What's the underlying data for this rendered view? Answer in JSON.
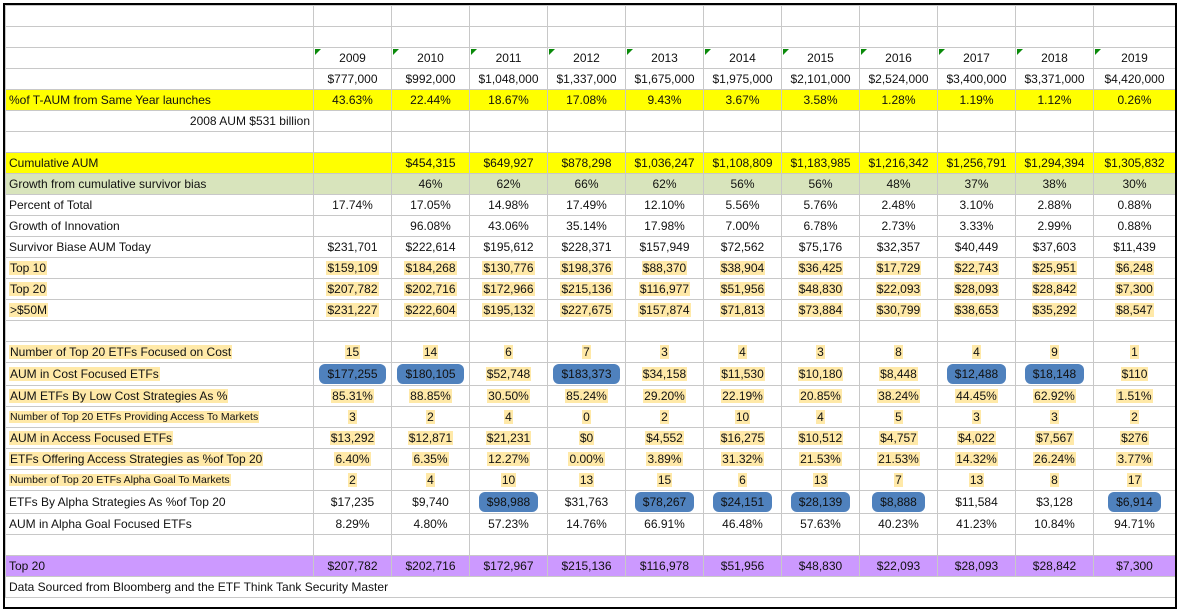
{
  "years": [
    "2009",
    "2010",
    "2011",
    "2012",
    "2013",
    "2014",
    "2015",
    "2016",
    "2017",
    "2018",
    "2019"
  ],
  "totals": [
    "$777,000",
    "$992,000",
    "$1,048,000",
    "$1,337,000",
    "$1,675,000",
    "$1,975,000",
    "$2,101,000",
    "$2,524,000",
    "$3,400,000",
    "$3,371,000",
    "$4,420,000"
  ],
  "rows": {
    "pct_taum": {
      "label": "%of T-AUM  from Same Year launches",
      "values": [
        "43.63%",
        "22.44%",
        "18.67%",
        "17.08%",
        "9.43%",
        "3.67%",
        "3.58%",
        "1.28%",
        "1.19%",
        "1.12%",
        "0.26%"
      ]
    },
    "aum_2008": {
      "label": "2008 AUM $531 billion"
    },
    "cumulative_aum": {
      "label": "Cumulative AUM",
      "values": [
        "",
        "$454,315",
        "$649,927",
        "$878,298",
        "$1,036,247",
        "$1,108,809",
        "$1,183,985",
        "$1,216,342",
        "$1,256,791",
        "$1,294,394",
        "$1,305,832"
      ]
    },
    "growth_bias": {
      "label": "Growth from cumulative survivor bias",
      "values": [
        "",
        "46%",
        "62%",
        "66%",
        "62%",
        "56%",
        "56%",
        "48%",
        "37%",
        "38%",
        "30%"
      ]
    },
    "percent_total": {
      "label": "Percent of Total",
      "values": [
        "17.74%",
        "17.05%",
        "14.98%",
        "17.49%",
        "12.10%",
        "5.56%",
        "5.76%",
        "2.48%",
        "3.10%",
        "2.88%",
        "0.88%"
      ]
    },
    "growth_innovation": {
      "label": "Growth of Innovation",
      "values": [
        "",
        "96.08%",
        "43.06%",
        "35.14%",
        "17.98%",
        "7.00%",
        "6.78%",
        "2.73%",
        "3.33%",
        "2.99%",
        "0.88%"
      ]
    },
    "survivor_aum": {
      "label": "Survivor Biase AUM Today",
      "values": [
        "$231,701",
        "$222,614",
        "$195,612",
        "$228,371",
        "$157,949",
        "$72,562",
        "$75,176",
        "$32,357",
        "$40,449",
        "$37,603",
        "$11,439"
      ]
    },
    "top10": {
      "label": "Top 10",
      "values": [
        "$159,109",
        "$184,268",
        "$130,776",
        "$198,376",
        "$88,370",
        "$38,904",
        "$36,425",
        "$17,729",
        "$22,743",
        "$25,951",
        "$6,248"
      ]
    },
    "top20": {
      "label": "Top 20",
      "values": [
        "$207,782",
        "$202,716",
        "$172,966",
        "$215,136",
        "$116,977",
        "$51,956",
        "$48,830",
        "$22,093",
        "$28,093",
        "$28,842",
        "$7,300"
      ]
    },
    "gt50m": {
      "label": ">$50M",
      "values": [
        "$231,227",
        "$222,604",
        "$195,132",
        "$227,675",
        "$157,874",
        "$71,813",
        "$73,884",
        "$30,799",
        "$38,653",
        "$35,292",
        "$8,547"
      ]
    },
    "num_cost": {
      "label": "Number of Top 20 ETFs Focused on Cost",
      "values": [
        "15",
        "14",
        "6",
        "7",
        "3",
        "4",
        "3",
        "8",
        "4",
        "9",
        "1"
      ]
    },
    "aum_cost": {
      "label": "AUM  in Cost Focused ETFs",
      "values": [
        "$177,255",
        "$180,105",
        "$52,748",
        "$183,373",
        "$34,158",
        "$11,530",
        "$10,180",
        "$8,448",
        "$12,488",
        "$18,148",
        "$110"
      ]
    },
    "aum_low_cost": {
      "label": "AUM  ETFs By Low Cost Strategies As %",
      "values": [
        "85.31%",
        "88.85%",
        "30.50%",
        "85.24%",
        "29.20%",
        "22.19%",
        "20.85%",
        "38.24%",
        "44.45%",
        "62.92%",
        "1.51%"
      ]
    },
    "num_access": {
      "label": "Number of Top 20 ETFs Providing Access To Markets",
      "values": [
        "3",
        "2",
        "4",
        "0",
        "2",
        "10",
        "4",
        "5",
        "3",
        "3",
        "2"
      ]
    },
    "aum_access": {
      "label": "AUM  in Access Focused ETFs",
      "values": [
        "$13,292",
        "$12,871",
        "$21,231",
        "$0",
        "$4,552",
        "$16,275",
        "$10,512",
        "$4,757",
        "$4,022",
        "$7,567",
        "$276"
      ]
    },
    "access_pct": {
      "label": "ETFs Offering Access Strategies as %of Top 20",
      "values": [
        "6.40%",
        "6.35%",
        "12.27%",
        "0.00%",
        "3.89%",
        "31.32%",
        "21.53%",
        "21.53%",
        "14.32%",
        "26.24%",
        "3.77%"
      ]
    },
    "num_alpha": {
      "label": "Number of Top 20 ETFs Alpha Goal To Markets",
      "values": [
        "2",
        "4",
        "10",
        "13",
        "15",
        "6",
        "13",
        "7",
        "13",
        "8",
        "17"
      ]
    },
    "alpha_pct": {
      "label": "ETFs By Alpha Strategies As %of Top 20",
      "values": [
        "$17,235",
        "$9,740",
        "$98,988",
        "$31,763",
        "$78,267",
        "$24,151",
        "$28,139",
        "$8,888",
        "$11,584",
        "$3,128",
        "$6,914"
      ]
    },
    "aum_alpha": {
      "label": "AUM  in Alpha Goal Focused ETFs",
      "values": [
        "8.29%",
        "4.80%",
        "57.23%",
        "14.76%",
        "66.91%",
        "46.48%",
        "57.63%",
        "40.23%",
        "41.23%",
        "10.84%",
        "94.71%"
      ]
    },
    "top20_final": {
      "label": "Top 20",
      "values": [
        "$207,782",
        "$202,716",
        "$172,967",
        "$215,136",
        "$116,978",
        "$51,956",
        "$48,830",
        "$22,093",
        "$28,093",
        "$28,842",
        "$7,300"
      ]
    }
  },
  "footer": "Data Sourced from Bloomberg and the ETF Think Tank Security Master",
  "colors": {
    "yellow": "#ffff00",
    "green": "#d8e4bc",
    "purple": "#cc99ff",
    "blue_highlight": "#4f81bd",
    "cell_highlight": "#ffe9a8"
  },
  "blue_cells": {
    "aum_cost": [
      0,
      1,
      3,
      8,
      9
    ],
    "alpha_pct": [
      2,
      4,
      5,
      6,
      7,
      10
    ]
  },
  "highlight_rows": [
    "top10",
    "top20",
    "gt50m",
    "num_cost",
    "aum_cost",
    "aum_low_cost",
    "num_access",
    "aum_access",
    "access_pct",
    "num_alpha"
  ]
}
